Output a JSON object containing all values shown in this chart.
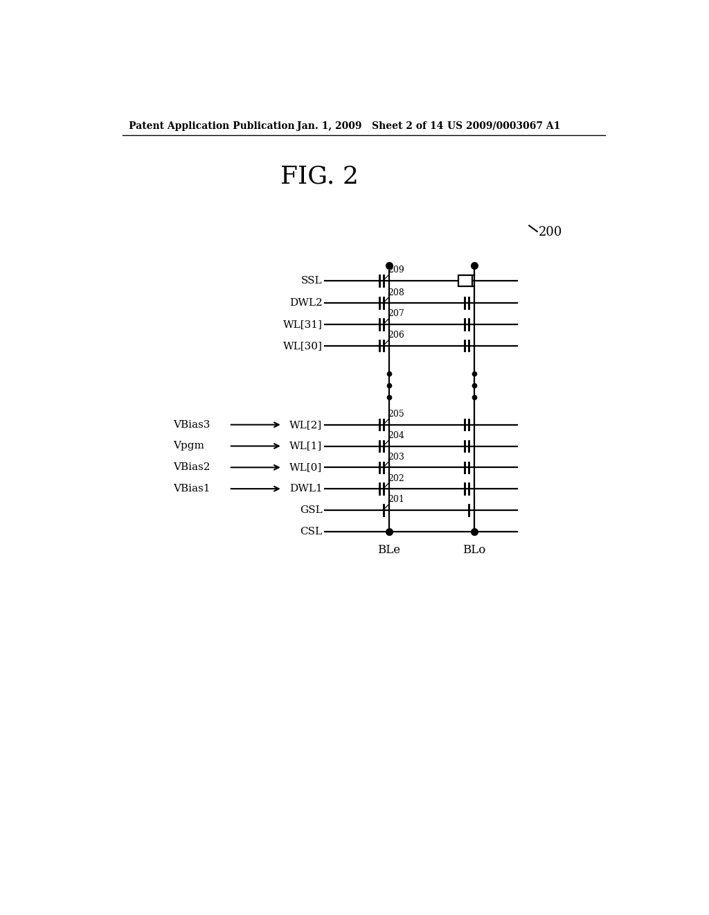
{
  "header_left": "Patent Application Publication",
  "header_mid": "Jan. 1, 2009   Sheet 2 of 14",
  "header_right": "US 2009/0003067 A1",
  "title": "FIG. 2",
  "fig_label": "200",
  "row_labels": [
    "SSL",
    "DWL2",
    "WL[31]",
    "WL[30]",
    "WL[2]",
    "WL[1]",
    "WL[0]",
    "DWL1",
    "GSL",
    "CSL"
  ],
  "row_numbers": {
    "SSL": "209",
    "DWL2": "208",
    "WL[31]": "207",
    "WL[30]": "206",
    "WL[2]": "205",
    "WL[1]": "204",
    "WL[0]": "203",
    "DWL1": "202",
    "GSL": "201",
    "CSL": ""
  },
  "voltage_labels": [
    "VBias3",
    "Vpgm",
    "VBias2",
    "VBias1"
  ],
  "voltage_rows": [
    "WL[2]",
    "WL[1]",
    "WL[0]",
    "DWL1"
  ],
  "ble_label": "BLe",
  "blo_label": "BLo",
  "bg_color": "#ffffff"
}
